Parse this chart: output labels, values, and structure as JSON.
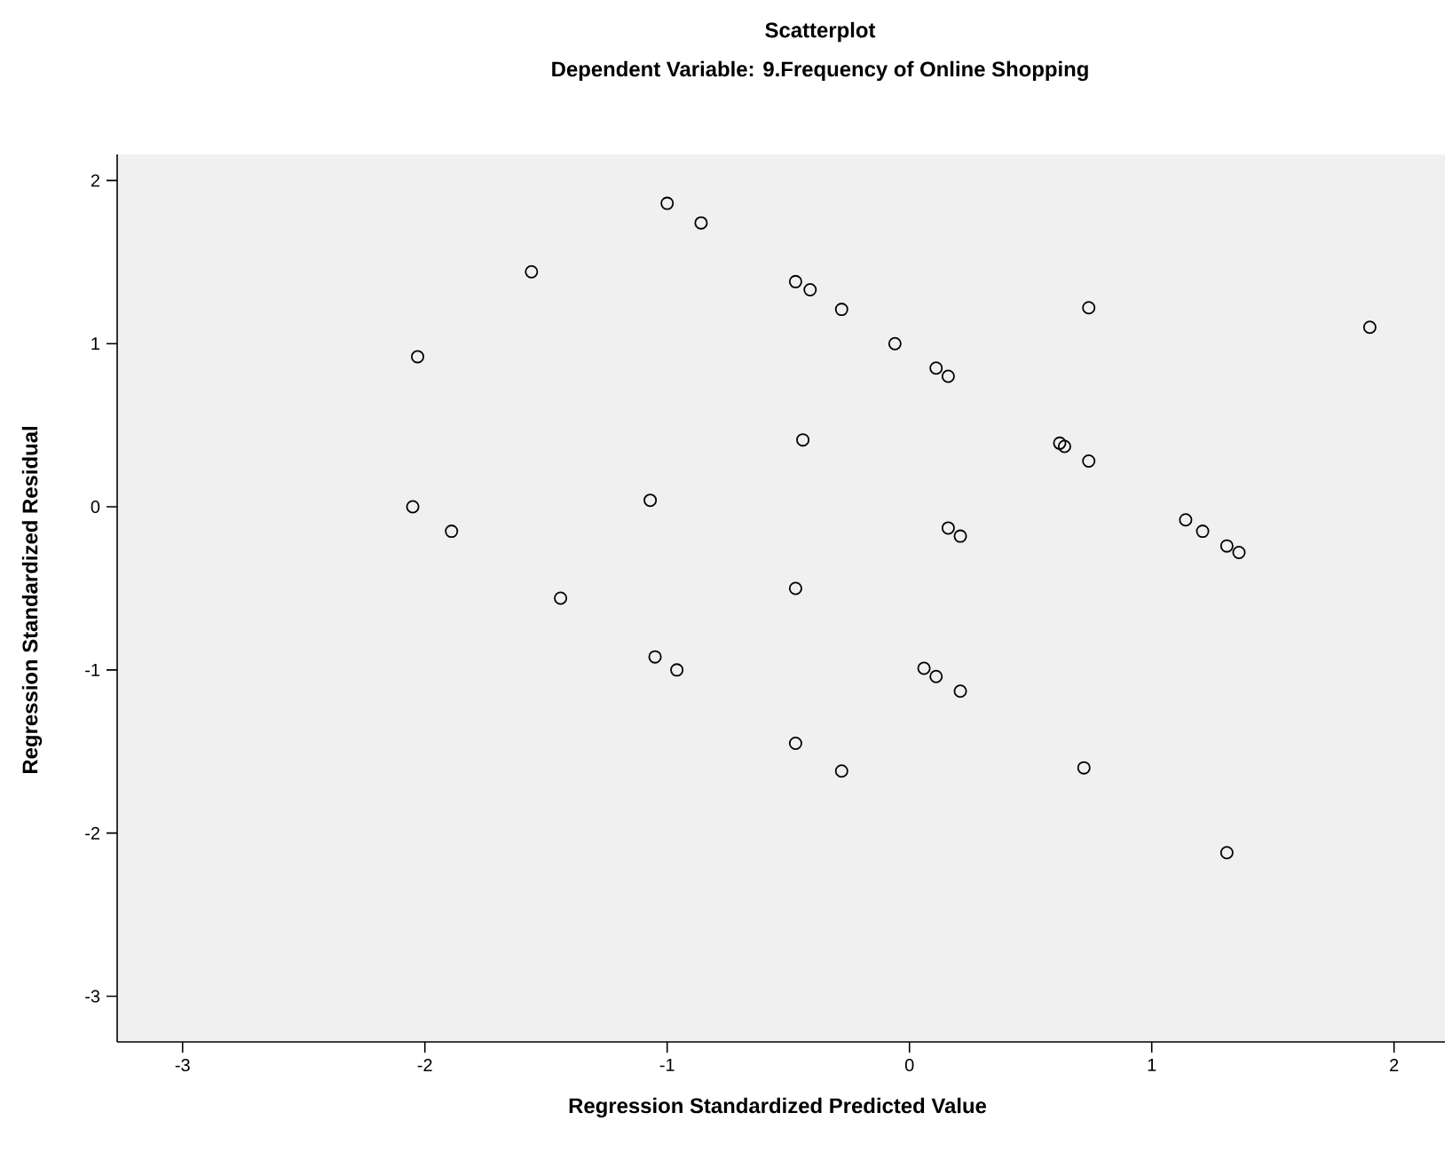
{
  "chart_data": {
    "type": "scatter",
    "title": "Scatterplot",
    "subtitle": "Dependent Variable: 9.Frequency of Online Shopping",
    "xlabel": "Regression Standardized Predicted Value",
    "ylabel": "Regression Standardized Residual",
    "xlim": [
      -3.27,
      2.21
    ],
    "ylim": [
      -3.28,
      2.16
    ],
    "xticks": [
      -3,
      -2,
      -1,
      0,
      1,
      2
    ],
    "yticks": [
      -3,
      -2,
      -1,
      0,
      1,
      2
    ],
    "marker": "circle",
    "grid": false,
    "series": [
      {
        "color": "#000000",
        "x": [
          -1.0,
          -0.86,
          -1.56,
          -2.03,
          -2.05,
          -1.89,
          -1.07,
          -1.44,
          -1.05,
          -0.96,
          -0.47,
          -0.41,
          -0.28,
          -0.06,
          0.11,
          0.16,
          0.74,
          1.9,
          -0.44,
          0.62,
          0.64,
          0.74,
          0.16,
          0.21,
          1.14,
          1.21,
          1.31,
          1.36,
          -0.47,
          0.06,
          0.11,
          0.21,
          -0.47,
          -0.28,
          0.72,
          1.31
        ],
        "values": [
          1.86,
          1.74,
          1.44,
          0.92,
          0.0,
          -0.15,
          0.04,
          -0.56,
          -0.92,
          -1.0,
          1.38,
          1.33,
          1.21,
          1.0,
          0.85,
          0.8,
          1.22,
          1.1,
          0.41,
          0.39,
          0.37,
          0.28,
          -0.13,
          -0.18,
          -0.08,
          -0.15,
          -0.24,
          -0.28,
          -0.5,
          -0.99,
          -1.04,
          -1.13,
          -1.45,
          -1.62,
          -1.6,
          -2.12
        ]
      }
    ]
  }
}
